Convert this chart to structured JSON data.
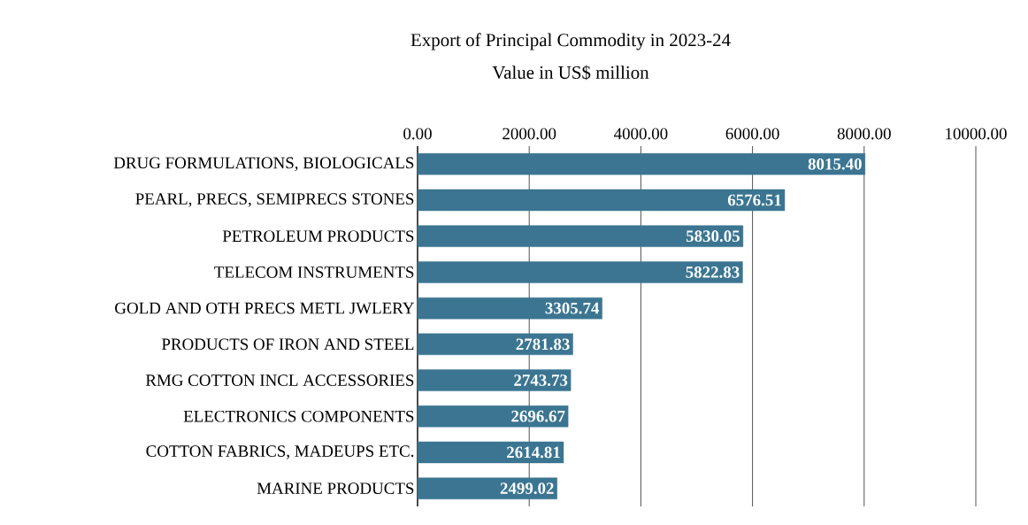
{
  "chart_data": {
    "type": "bar",
    "orientation": "horizontal",
    "title": "Export of Principal Commodity in 2023-24",
    "subtitle": "Value in US$ million",
    "categories": [
      "DRUG FORMULATIONS, BIOLOGICALS",
      "PEARL, PRECS, SEMIPRECS STONES",
      "PETROLEUM PRODUCTS",
      "TELECOM INSTRUMENTS",
      "GOLD AND OTH PRECS METL JWLERY",
      "PRODUCTS OF IRON AND STEEL",
      "RMG COTTON INCL ACCESSORIES",
      "ELECTRONICS COMPONENTS",
      "COTTON FABRICS, MADEUPS ETC.",
      "MARINE PRODUCTS"
    ],
    "values": [
      8015.4,
      6576.51,
      5830.05,
      5822.83,
      3305.74,
      2781.83,
      2743.73,
      2696.67,
      2614.81,
      2499.02
    ],
    "value_labels": [
      "8015.40",
      "6576.51",
      "5830.05",
      "5822.83",
      "3305.74",
      "2781.83",
      "2743.73",
      "2696.67",
      "2614.81",
      "2499.02"
    ],
    "color": "#3b7591",
    "xlim": [
      0,
      10000
    ],
    "xticks": [
      {
        "value": 0,
        "label": "0.00"
      },
      {
        "value": 2000,
        "label": "2000.00"
      },
      {
        "value": 4000,
        "label": "4000.00"
      },
      {
        "value": 6000,
        "label": "6000.00"
      },
      {
        "value": 8000,
        "label": "8000.00"
      },
      {
        "value": 10000,
        "label": "10000.00"
      }
    ],
    "grid": "x"
  }
}
